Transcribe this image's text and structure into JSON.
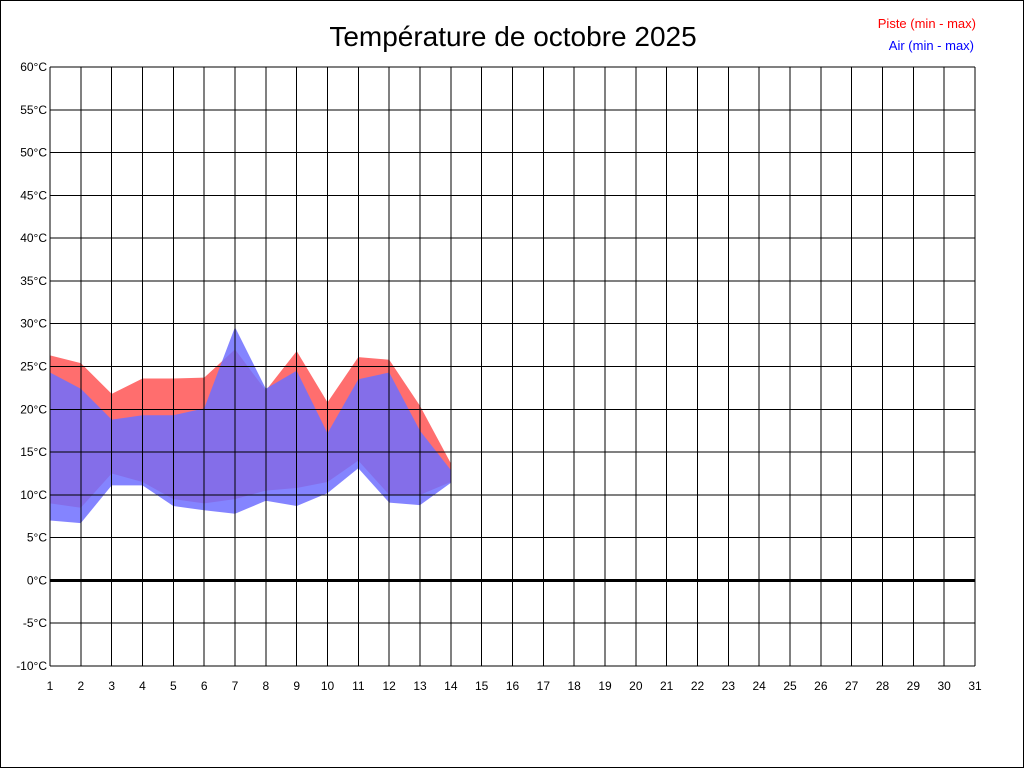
{
  "chart_data": {
    "type": "area",
    "title": "Température de octobre 2025",
    "xlabel": "",
    "ylabel": "",
    "xlim": [
      1,
      31
    ],
    "ylim": [
      -10,
      60
    ],
    "x_ticks": [
      "1",
      "2",
      "3",
      "4",
      "5",
      "6",
      "7",
      "8",
      "9",
      "10",
      "11",
      "12",
      "13",
      "14",
      "15",
      "16",
      "17",
      "18",
      "19",
      "20",
      "21",
      "22",
      "23",
      "24",
      "25",
      "26",
      "27",
      "28",
      "29",
      "30",
      "31"
    ],
    "y_ticks": [
      "-10°C",
      "-5°C",
      "0°C",
      "5°C",
      "10°C",
      "15°C",
      "20°C",
      "25°C",
      "30°C",
      "35°C",
      "40°C",
      "45°C",
      "50°C",
      "55°C",
      "60°C"
    ],
    "y_tick_values": [
      -10,
      -5,
      0,
      5,
      10,
      15,
      20,
      25,
      30,
      35,
      40,
      45,
      50,
      55,
      60
    ],
    "grid": true,
    "zero_line": true,
    "legend_position": "top-right",
    "x": [
      1,
      2,
      3,
      4,
      5,
      6,
      7,
      8,
      9,
      10,
      11,
      12,
      13,
      14
    ],
    "series": [
      {
        "name": "Piste (min - max)",
        "color": "#ff0000",
        "fill": "#ff6e6e",
        "min": [
          9.0,
          8.5,
          12.5,
          11.5,
          9.5,
          9.0,
          9.5,
          10.5,
          10.8,
          11.5,
          14.0,
          10.0,
          10.0,
          11.5
        ],
        "max": [
          26.3,
          25.4,
          21.8,
          23.6,
          23.6,
          23.7,
          27.0,
          22.2,
          26.8,
          20.8,
          26.1,
          25.8,
          20.4,
          13.7
        ]
      },
      {
        "name": "Air (min - max)",
        "color": "#0000ff",
        "fill": "#6e6eff",
        "min": [
          7.0,
          6.7,
          11.1,
          11.1,
          8.7,
          8.2,
          7.8,
          9.3,
          8.7,
          10.2,
          13.1,
          9.1,
          8.8,
          11.4
        ],
        "max": [
          24.3,
          22.4,
          18.8,
          19.3,
          19.3,
          20.1,
          29.6,
          22.4,
          24.5,
          17.2,
          23.5,
          24.3,
          17.5,
          12.9
        ]
      }
    ]
  }
}
